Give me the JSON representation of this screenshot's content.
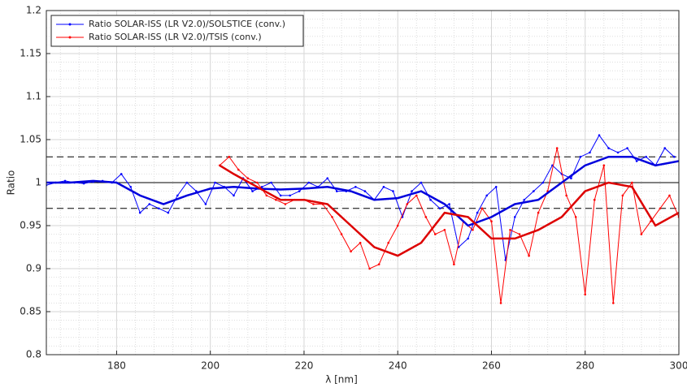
{
  "chart_data": {
    "type": "line",
    "xlabel": "λ [nm]",
    "ylabel": "Ratio",
    "xlim": [
      165,
      300
    ],
    "xticks": [
      180,
      200,
      220,
      240,
      260,
      280,
      300
    ],
    "ylim": [
      0.8,
      1.2
    ],
    "yticks": [
      0.8,
      0.85,
      0.9,
      0.95,
      1,
      1.05,
      1.1,
      1.15,
      1.2
    ],
    "grid": true,
    "minor_grid": true,
    "legend": "upper-left",
    "hlines": [
      {
        "value": 1,
        "style": "solid"
      },
      {
        "value": 1.03,
        "style": "dashed"
      },
      {
        "value": 0.97,
        "style": "dashed"
      }
    ],
    "series": [
      {
        "name": "Ratio SOLAR-ISS (LR V2.0)/SOLSTICE (conv.)",
        "color": "#0000ff",
        "marker": true,
        "x": [
          165,
          167,
          169,
          171,
          173,
          175,
          177,
          179,
          181,
          183,
          185,
          187,
          189,
          191,
          193,
          195,
          197,
          199,
          201,
          203,
          205,
          207,
          209,
          211,
          213,
          215,
          217,
          219,
          221,
          223,
          225,
          227,
          229,
          231,
          233,
          235,
          237,
          239,
          241,
          243,
          245,
          247,
          249,
          251,
          253,
          255,
          257,
          259,
          261,
          263,
          265,
          267,
          269,
          271,
          273,
          275,
          277,
          279,
          281,
          283,
          285,
          287,
          289,
          291,
          293,
          295,
          297,
          299
        ],
        "values": [
          0.997,
          1.0,
          1.002,
          1.0,
          0.999,
          1.001,
          1.002,
          1.0,
          1.01,
          0.995,
          0.965,
          0.975,
          0.97,
          0.965,
          0.985,
          1.0,
          0.99,
          0.975,
          1.0,
          0.995,
          0.985,
          1.005,
          0.99,
          0.995,
          1.0,
          0.985,
          0.985,
          0.99,
          1.0,
          0.995,
          1.005,
          0.99,
          0.99,
          0.995,
          0.99,
          0.98,
          0.995,
          0.99,
          0.96,
          0.99,
          1.0,
          0.98,
          0.97,
          0.975,
          0.925,
          0.935,
          0.965,
          0.985,
          0.995,
          0.91,
          0.96,
          0.98,
          0.99,
          1.0,
          1.02,
          1.01,
          1.005,
          1.03,
          1.035,
          1.055,
          1.04,
          1.035,
          1.04,
          1.025,
          1.03,
          1.02,
          1.04,
          1.03
        ]
      },
      {
        "name": "Ratio SOLAR-ISS (LR V2.0)/TSIS (conv.)",
        "color": "#ff0000",
        "marker": true,
        "x": [
          202,
          204,
          206,
          208,
          210,
          212,
          214,
          216,
          218,
          220,
          222,
          224,
          226,
          228,
          230,
          232,
          234,
          236,
          238,
          240,
          242,
          244,
          246,
          248,
          250,
          252,
          254,
          256,
          258,
          260,
          262,
          264,
          266,
          268,
          270,
          272,
          274,
          276,
          278,
          280,
          282,
          284,
          286,
          288,
          290,
          292,
          294,
          296,
          298,
          300
        ],
        "values": [
          1.02,
          1.03,
          1.015,
          1.005,
          1.0,
          0.985,
          0.98,
          0.975,
          0.98,
          0.98,
          0.975,
          0.975,
          0.96,
          0.94,
          0.92,
          0.93,
          0.9,
          0.905,
          0.93,
          0.95,
          0.975,
          0.985,
          0.96,
          0.94,
          0.945,
          0.905,
          0.955,
          0.945,
          0.97,
          0.955,
          0.86,
          0.945,
          0.94,
          0.915,
          0.965,
          0.99,
          1.04,
          0.985,
          0.96,
          0.87,
          0.98,
          1.02,
          0.86,
          0.985,
          1.0,
          0.94,
          0.955,
          0.97,
          0.985,
          0.96
        ]
      },
      {
        "color": "#0000dd",
        "marker": false,
        "width": 2.5,
        "x": [
          165,
          170,
          175,
          180,
          185,
          190,
          195,
          200,
          205,
          210,
          215,
          220,
          225,
          230,
          235,
          240,
          245,
          250,
          255,
          260,
          265,
          270,
          275,
          280,
          285,
          290,
          295,
          300
        ],
        "values": [
          1.0,
          1.0,
          1.002,
          1.0,
          0.985,
          0.975,
          0.985,
          0.993,
          0.995,
          0.993,
          0.992,
          0.993,
          0.995,
          0.99,
          0.98,
          0.982,
          0.99,
          0.975,
          0.95,
          0.96,
          0.975,
          0.98,
          1.0,
          1.02,
          1.03,
          1.03,
          1.02,
          1.025
        ]
      },
      {
        "color": "#dd0000",
        "marker": false,
        "width": 2.5,
        "x": [
          202,
          205,
          210,
          215,
          220,
          225,
          230,
          235,
          240,
          245,
          250,
          255,
          260,
          265,
          270,
          275,
          280,
          285,
          290,
          295,
          300
        ],
        "values": [
          1.02,
          1.01,
          0.995,
          0.98,
          0.98,
          0.975,
          0.95,
          0.925,
          0.915,
          0.93,
          0.965,
          0.96,
          0.935,
          0.935,
          0.945,
          0.96,
          0.99,
          1.0,
          0.995,
          0.95,
          0.965
        ]
      }
    ]
  }
}
